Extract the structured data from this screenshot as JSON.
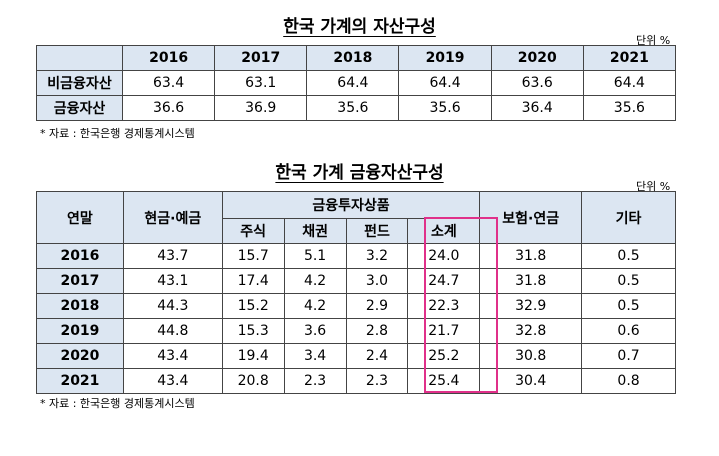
{
  "table1": {
    "title": "한국 가계의 자산구성",
    "unit": "단위 %",
    "years": [
      "2016",
      "2017",
      "2018",
      "2019",
      "2020",
      "2021"
    ],
    "rows": [
      {
        "label": "비금융자산",
        "values": [
          "63.4",
          "63.1",
          "64.4",
          "64.4",
          "63.6",
          "64.4"
        ]
      },
      {
        "label": "금융자산",
        "values": [
          "36.6",
          "36.9",
          "35.6",
          "35.6",
          "36.4",
          "35.6"
        ]
      }
    ],
    "source": "*  자료 : 한국은행  경제통계시스템"
  },
  "table2": {
    "title": "한국 가계 금융자산구성",
    "unit": "단위 %",
    "headers": {
      "year": "연말",
      "cash": "현금·예금",
      "invest": "금융투자상품",
      "stock": "주식",
      "bond": "채권",
      "fund": "펀드",
      "subtotal": "소계",
      "insurance": "보험·연금",
      "other": "기타"
    },
    "rows": [
      {
        "year": "2016",
        "cash": "43.7",
        "stock": "15.7",
        "bond": "5.1",
        "fund": "3.2",
        "subtotal": "24.0",
        "insurance": "31.8",
        "other": "0.5"
      },
      {
        "year": "2017",
        "cash": "43.1",
        "stock": "17.4",
        "bond": "4.2",
        "fund": "3.0",
        "subtotal": "24.7",
        "insurance": "31.8",
        "other": "0.5"
      },
      {
        "year": "2018",
        "cash": "44.3",
        "stock": "15.2",
        "bond": "4.2",
        "fund": "2.9",
        "subtotal": "22.3",
        "insurance": "32.9",
        "other": "0.5"
      },
      {
        "year": "2019",
        "cash": "44.8",
        "stock": "15.3",
        "bond": "3.6",
        "fund": "2.8",
        "subtotal": "21.7",
        "insurance": "32.8",
        "other": "0.6"
      },
      {
        "year": "2020",
        "cash": "43.4",
        "stock": "19.4",
        "bond": "3.4",
        "fund": "2.4",
        "subtotal": "25.2",
        "insurance": "30.8",
        "other": "0.7"
      },
      {
        "year": "2021",
        "cash": "43.4",
        "stock": "20.8",
        "bond": "2.3",
        "fund": "2.3",
        "subtotal": "25.4",
        "insurance": "30.4",
        "other": "0.8"
      }
    ],
    "source": "*  자료 : 한국은행  경제통계시스템",
    "highlight_color": "#e0308a"
  }
}
